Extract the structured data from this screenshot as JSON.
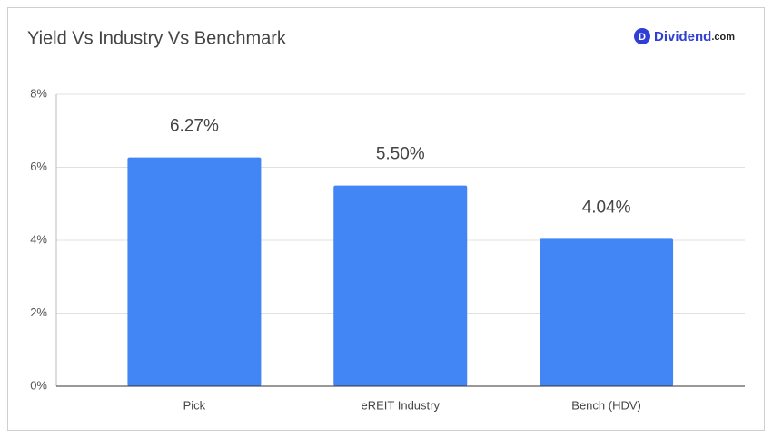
{
  "chart_data": {
    "type": "bar",
    "title": "Yield Vs Industry Vs Benchmark",
    "categories": [
      "Pick",
      "eREIT Industry",
      "Bench (HDV)"
    ],
    "values": [
      6.27,
      5.5,
      4.04
    ],
    "value_labels": [
      "6.27%",
      "5.50%",
      "4.04%"
    ],
    "color": "#4285f4",
    "ylim": [
      0,
      8
    ],
    "yticks": [
      {
        "value": 0,
        "label": "0%"
      },
      {
        "value": 2,
        "label": "2%"
      },
      {
        "value": 4,
        "label": "4%"
      },
      {
        "value": 6,
        "label": "6%"
      },
      {
        "value": 8,
        "label": "8%"
      }
    ],
    "grid": true
  },
  "logo": {
    "icon": "D",
    "name": "Dividend",
    "suffix": ".com"
  }
}
